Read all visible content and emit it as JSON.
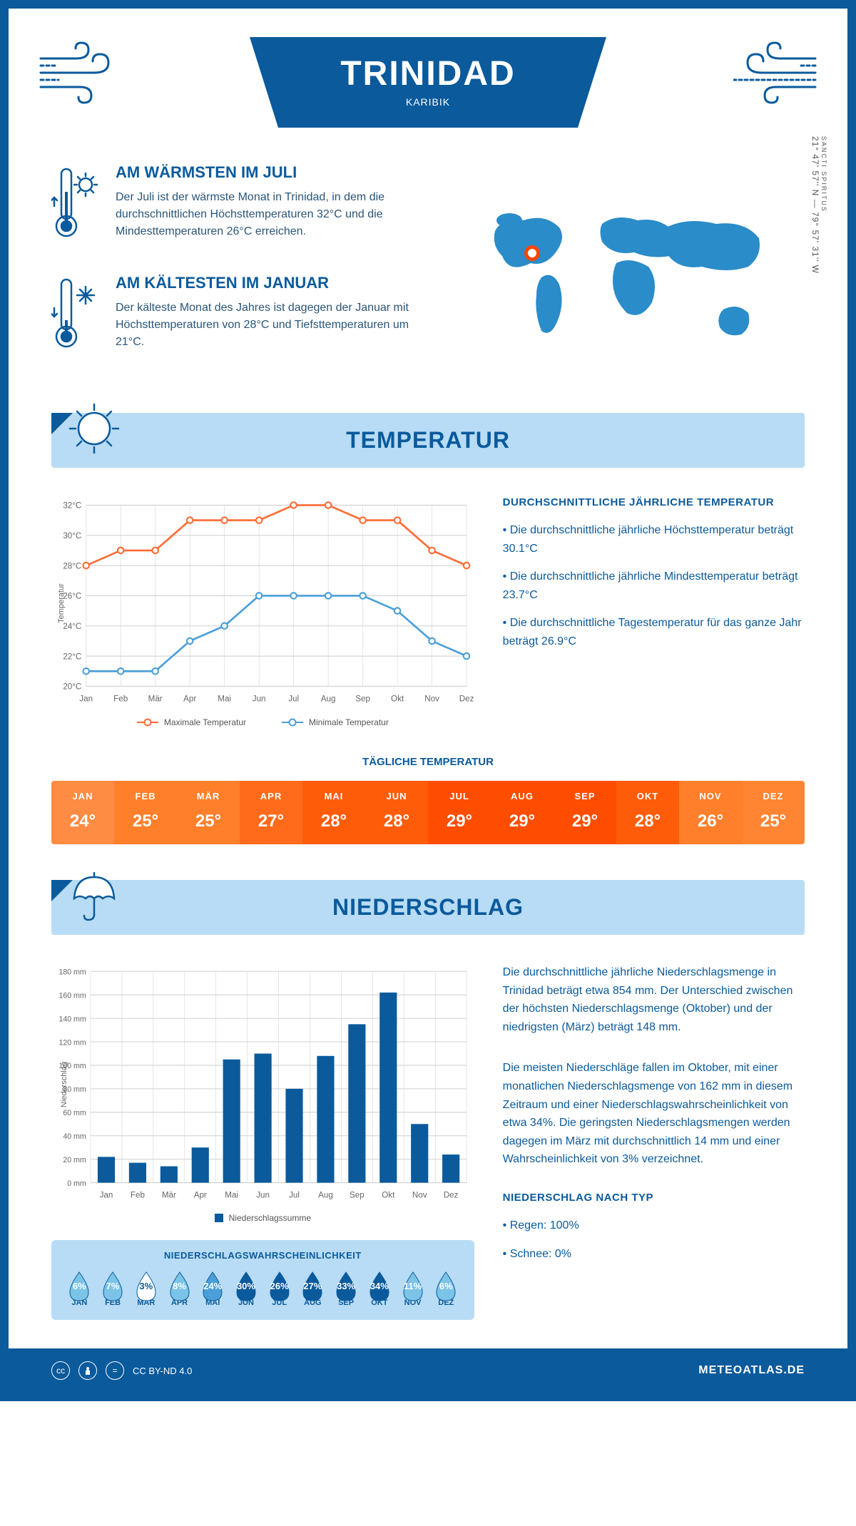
{
  "header": {
    "title": "TRINIDAD",
    "subtitle": "KARIBIK"
  },
  "coords": {
    "line": "21° 47' 57'' N — 79° 57' 31'' W",
    "sub": "SANCTI SPIRITUS"
  },
  "fact_warm": {
    "heading": "AM WÄRMSTEN IM JULI",
    "text": "Der Juli ist der wärmste Monat in Trinidad, in dem die durchschnittlichen Höchsttemperaturen 32°C und die Mindesttemperaturen 26°C erreichen."
  },
  "fact_cold": {
    "heading": "AM KÄLTESTEN IM JANUAR",
    "text": "Der kälteste Monat des Jahres ist dagegen der Januar mit Höchsttemperaturen von 28°C und Tiefsttemperaturen um 21°C."
  },
  "months_short": [
    "Jan",
    "Feb",
    "Mär",
    "Apr",
    "Mai",
    "Jun",
    "Jul",
    "Aug",
    "Sep",
    "Okt",
    "Nov",
    "Dez"
  ],
  "months_upper": [
    "JAN",
    "FEB",
    "MÄR",
    "APR",
    "MAI",
    "JUN",
    "JUL",
    "AUG",
    "SEP",
    "OKT",
    "NOV",
    "DEZ"
  ],
  "section_temp": {
    "title": "TEMPERATUR"
  },
  "temp_chart": {
    "type": "line",
    "y_ticks": [
      20,
      22,
      24,
      26,
      28,
      30,
      32
    ],
    "y_tick_labels": [
      "20°C",
      "22°C",
      "24°C",
      "26°C",
      "28°C",
      "30°C",
      "32°C"
    ],
    "y_axis_label": "Temperatur",
    "ylim": [
      20,
      32
    ],
    "series_max": {
      "label": "Maximale Temperatur",
      "color": "#ff6b35",
      "values": [
        28,
        29,
        29,
        31,
        31,
        31,
        32,
        32,
        31,
        31,
        29,
        28
      ]
    },
    "series_min": {
      "label": "Minimale Temperatur",
      "color": "#4a9fd8",
      "values": [
        21,
        21,
        21,
        23,
        24,
        26,
        26,
        26,
        26,
        25,
        23,
        22
      ]
    },
    "grid_color": "#d0d0d0",
    "background": "#ffffff"
  },
  "temp_summary": {
    "heading": "DURCHSCHNITTLICHE JÄHRLICHE TEMPERATUR",
    "b1": "Die durchschnittliche jährliche Höchsttemperatur beträgt 30.1°C",
    "b2": "Die durchschnittliche jährliche Mindesttemperatur beträgt 23.7°C",
    "b3": "Die durchschnittliche Tagestemperatur für das ganze Jahr beträgt 26.9°C"
  },
  "daily_temp": {
    "heading": "TÄGLICHE TEMPERATUR",
    "values": [
      "24°",
      "25°",
      "25°",
      "27°",
      "28°",
      "28°",
      "29°",
      "29°",
      "29°",
      "28°",
      "26°",
      "25°"
    ],
    "colors": [
      "#ff8c42",
      "#ff7f2a",
      "#ff7f2a",
      "#ff6b1a",
      "#ff5c0a",
      "#ff5c0a",
      "#ff4d00",
      "#ff4d00",
      "#ff4d00",
      "#ff5c0a",
      "#ff7f2a",
      "#ff8533"
    ]
  },
  "section_precip": {
    "title": "NIEDERSCHLAG"
  },
  "precip_chart": {
    "type": "bar",
    "y_axis_label": "Niederschlag",
    "y_ticks": [
      0,
      20,
      40,
      60,
      80,
      100,
      120,
      140,
      160,
      180
    ],
    "y_tick_labels": [
      "0 mm",
      "20 mm",
      "40 mm",
      "60 mm",
      "80 mm",
      "100 mm",
      "120 mm",
      "140 mm",
      "160 mm",
      "180 mm"
    ],
    "ylim": [
      0,
      180
    ],
    "values": [
      22,
      17,
      14,
      30,
      105,
      110,
      80,
      108,
      135,
      162,
      50,
      24
    ],
    "bar_color": "#0a5a9c",
    "grid_color": "#d0d0d0",
    "legend_label": "Niederschlagssumme",
    "bar_width": 0.55
  },
  "precip_summary": {
    "p1": "Die durchschnittliche jährliche Niederschlagsmenge in Trinidad beträgt etwa 854 mm. Der Unterschied zwischen der höchsten Niederschlagsmenge (Oktober) und der niedrigsten (März) beträgt 148 mm.",
    "p2": "Die meisten Niederschläge fallen im Oktober, mit einer monatlichen Niederschlagsmenge von 162 mm in diesem Zeitraum und einer Niederschlagswahrscheinlichkeit von etwa 34%. Die geringsten Niederschlagsmengen werden dagegen im März mit durchschnittlich 14 mm und einer Wahrscheinlichkeit von 3% verzeichnet.",
    "heading2": "NIEDERSCHLAG NACH TYP",
    "rain": "Regen: 100%",
    "snow": "Schnee: 0%"
  },
  "precip_prob": {
    "heading": "NIEDERSCHLAGSWAHRSCHEINLICHKEIT",
    "values": [
      "6%",
      "7%",
      "3%",
      "8%",
      "24%",
      "30%",
      "26%",
      "27%",
      "33%",
      "34%",
      "11%",
      "6%"
    ],
    "drop_colors": [
      "#7bc4e8",
      "#7bc4e8",
      "#ffffff",
      "#7bc4e8",
      "#4a9fd8",
      "#0a5a9c",
      "#0a5a9c",
      "#0a5a9c",
      "#0a5a9c",
      "#0a5a9c",
      "#7bc4e8",
      "#7bc4e8"
    ],
    "text_colors": [
      "#ffffff",
      "#ffffff",
      "#0a5a9c",
      "#ffffff",
      "#ffffff",
      "#ffffff",
      "#ffffff",
      "#ffffff",
      "#ffffff",
      "#ffffff",
      "#ffffff",
      "#ffffff"
    ]
  },
  "footer": {
    "license": "CC BY-ND 4.0",
    "site": "METEOATLAS.DE"
  },
  "colors": {
    "primary": "#0a5a9c",
    "light_blue": "#b8dcf5",
    "mid_blue": "#4a9fd8",
    "orange": "#ff6b35"
  }
}
